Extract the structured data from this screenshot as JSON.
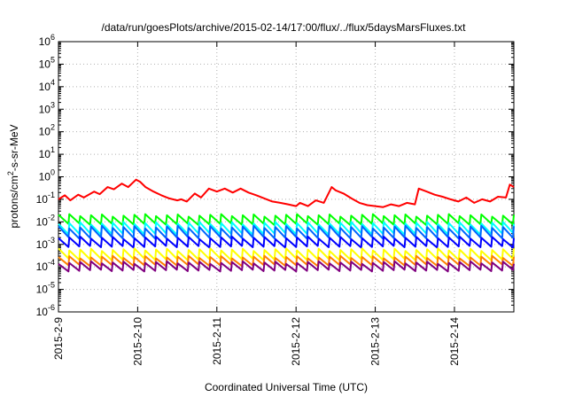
{
  "chart_data": {
    "type": "line",
    "title": "/data/run/goesPlots/archive/2015-02-14/17:00/flux/../flux/5daysMarsFluxes.txt",
    "xlabel": "Coordinated Universal Time (UTC)",
    "ylabel": {
      "prefix": "protons/cm",
      "sup": "2",
      "suffix": "-s-sr-MeV"
    },
    "y_scale": "log",
    "ylim_exponents": [
      -6,
      6
    ],
    "y_ticks": [
      {
        "base": "10",
        "exp": "6"
      },
      {
        "base": "10",
        "exp": "5"
      },
      {
        "base": "10",
        "exp": "4"
      },
      {
        "base": "10",
        "exp": "3"
      },
      {
        "base": "10",
        "exp": "2"
      },
      {
        "base": "10",
        "exp": "1"
      },
      {
        "base": "10",
        "exp": "0"
      },
      {
        "base": "10",
        "exp": "-1"
      },
      {
        "base": "10",
        "exp": "-2"
      },
      {
        "base": "10",
        "exp": "-3"
      },
      {
        "base": "10",
        "exp": "-4"
      },
      {
        "base": "10",
        "exp": "-5"
      },
      {
        "base": "10",
        "exp": "-6"
      }
    ],
    "x_ticks": [
      "2015-2-9",
      "2015-2-10",
      "2015-2-11",
      "2015-2-12",
      "2015-2-13",
      "2015-2-14"
    ],
    "xlim_days": [
      0,
      5.75
    ],
    "grid": true,
    "series": [
      {
        "color": "#ff0000",
        "x": [
          0.0,
          0.08,
          0.15,
          0.25,
          0.32,
          0.45,
          0.52,
          0.62,
          0.7,
          0.8,
          0.88,
          0.98,
          1.03,
          1.1,
          1.2,
          1.3,
          1.4,
          1.5,
          1.55,
          1.62,
          1.72,
          1.8,
          1.9,
          2.0,
          2.1,
          2.2,
          2.3,
          2.4,
          2.5,
          2.6,
          2.7,
          2.8,
          2.9,
          3.0,
          3.05,
          3.15,
          3.25,
          3.35,
          3.45,
          3.5,
          3.6,
          3.7,
          3.8,
          3.9,
          4.0,
          4.1,
          4.2,
          4.3,
          4.4,
          4.5,
          4.55,
          4.65,
          4.75,
          4.85,
          4.95,
          5.05,
          5.15,
          5.25,
          5.35,
          5.45,
          5.55,
          5.65,
          5.7,
          5.75
        ],
        "y": [
          0.1,
          0.15,
          0.09,
          0.16,
          0.12,
          0.22,
          0.17,
          0.35,
          0.28,
          0.5,
          0.35,
          0.75,
          0.6,
          0.35,
          0.22,
          0.15,
          0.11,
          0.09,
          0.1,
          0.08,
          0.18,
          0.12,
          0.3,
          0.22,
          0.3,
          0.2,
          0.3,
          0.2,
          0.15,
          0.11,
          0.08,
          0.07,
          0.06,
          0.05,
          0.07,
          0.05,
          0.09,
          0.07,
          0.35,
          0.25,
          0.18,
          0.11,
          0.07,
          0.055,
          0.05,
          0.045,
          0.06,
          0.05,
          0.07,
          0.06,
          0.3,
          0.22,
          0.16,
          0.13,
          0.1,
          0.08,
          0.12,
          0.07,
          0.1,
          0.08,
          0.13,
          0.12,
          0.45,
          0.35
        ]
      },
      {
        "color": "#00ff00",
        "spikes": 42,
        "low": 0.008,
        "high": 0.02
      },
      {
        "color": "#00ffff",
        "spikes": 42,
        "low": 0.003,
        "high": 0.009
      },
      {
        "color": "#0066ff",
        "spikes": 42,
        "low": 0.002,
        "high": 0.006
      },
      {
        "color": "#0000ff",
        "spikes": 42,
        "low": 0.0008,
        "high": 0.002
      },
      {
        "color": "#ffff00",
        "spikes": 42,
        "low": 0.00022,
        "high": 0.0006
      },
      {
        "color": "#ff8000",
        "spikes": 42,
        "low": 0.00012,
        "high": 0.00028
      },
      {
        "color": "#800080",
        "spikes": 42,
        "low": 7e-05,
        "high": 0.00016
      }
    ]
  }
}
